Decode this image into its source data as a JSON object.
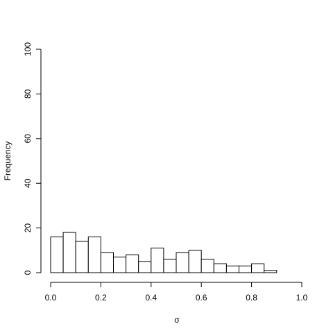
{
  "chart_data": {
    "type": "histogram",
    "x_label": "σ",
    "y_label": "Frequency",
    "bins": [
      0,
      0.05,
      0.1,
      0.15,
      0.2,
      0.25,
      0.3,
      0.35,
      0.4,
      0.45,
      0.5,
      0.55,
      0.6,
      0.65,
      0.7,
      0.75,
      0.8,
      0.85,
      0.9,
      0.95,
      1
    ],
    "values": [
      16,
      18,
      14,
      16,
      9,
      7,
      8,
      5,
      11,
      6,
      9,
      10,
      6,
      4,
      3,
      3,
      4,
      1,
      0,
      0
    ],
    "color": "#ffffff",
    "xlim": [
      0,
      1
    ],
    "xticks": [
      {
        "value": 0,
        "label": "0.0"
      },
      0.2,
      0.4,
      0.6,
      0.8,
      {
        "value": 1,
        "label": "1.0"
      }
    ],
    "ylim": [
      0,
      100
    ],
    "yticks": [
      0,
      20,
      40,
      60,
      80,
      100
    ],
    "grid": false
  }
}
